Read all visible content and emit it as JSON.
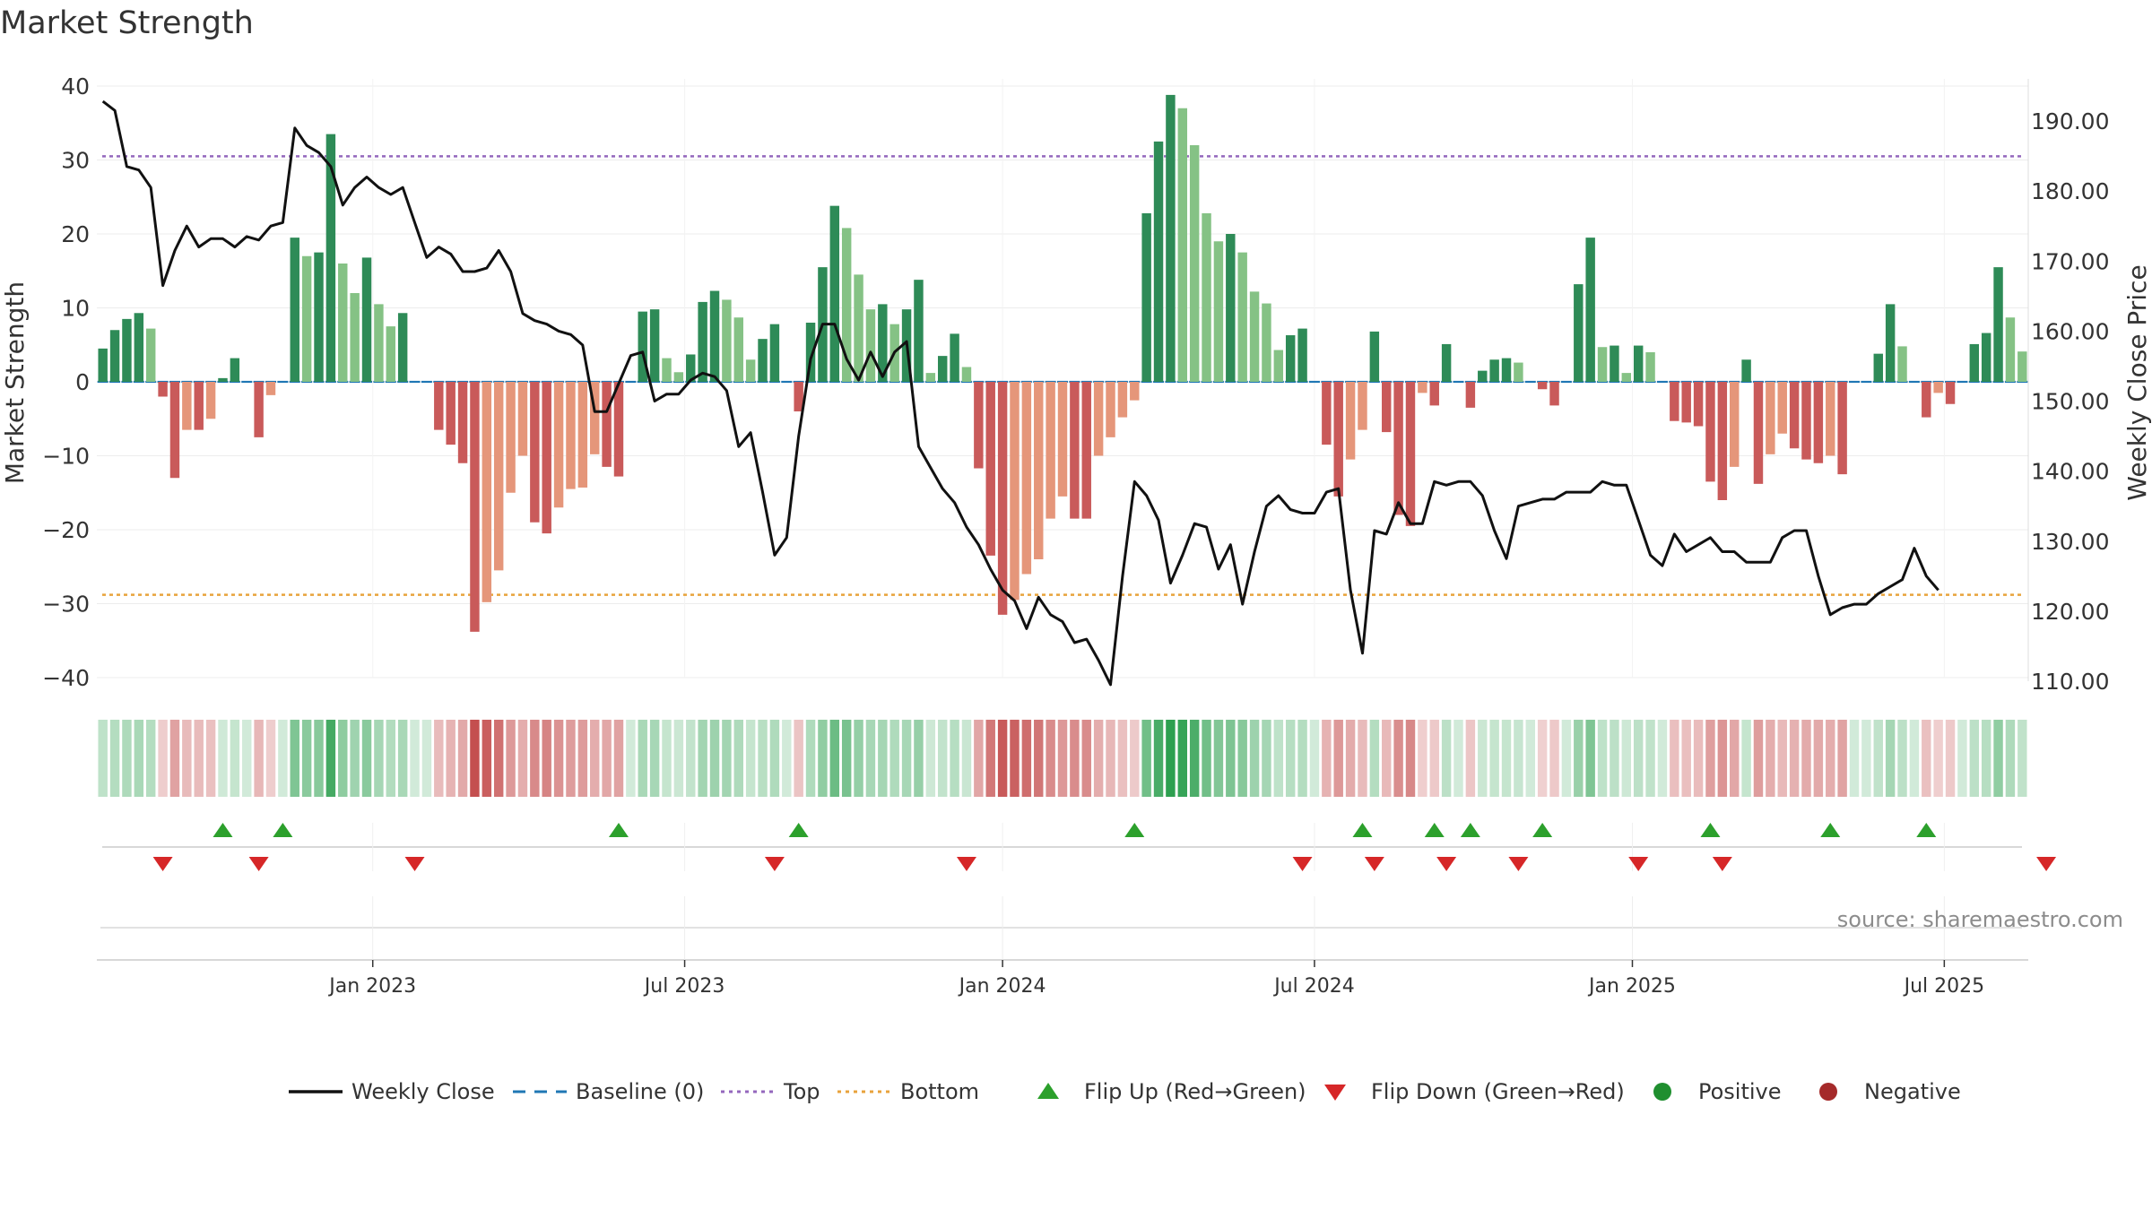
{
  "chart_data": {
    "type": "bar",
    "title": "Market Strength",
    "ylabel_left": "Market Strength",
    "ylabel_right": "Weekly Close Price",
    "source": "source: sharemaestro.com",
    "ylim_left": [
      -40,
      40
    ],
    "ylim_right": [
      110,
      190
    ],
    "yticks_left": [
      40,
      30,
      20,
      10,
      0,
      -10,
      -20,
      -30,
      -40
    ],
    "yticks_left_labels": [
      "40",
      "30",
      "20",
      "10",
      "0",
      "−10",
      "−20",
      "−30",
      "−40"
    ],
    "yticks_right": [
      190,
      180,
      170,
      160,
      150,
      140,
      130,
      120,
      110
    ],
    "yticks_right_labels": [
      "190.00",
      "180.00",
      "170.00",
      "160.00",
      "150.00",
      "140.00",
      "130.00",
      "120.00",
      "110.00"
    ],
    "x_ticks": [
      {
        "week": 23,
        "label": "Jan 2023"
      },
      {
        "week": 49,
        "label": "Jul 2023"
      },
      {
        "week": 75.5,
        "label": "Jan 2024"
      },
      {
        "week": 101.5,
        "label": "Jul 2024"
      },
      {
        "week": 128,
        "label": "Jan 2025"
      },
      {
        "week": 154,
        "label": "Jul 2025"
      }
    ],
    "top_level": 30.5,
    "bottom_level": -28.8,
    "strength": [
      4.5,
      7,
      8.5,
      9.3,
      7.2,
      -2,
      -13,
      -6.5,
      -6.5,
      -5,
      0.5,
      3.2,
      0,
      -7.5,
      -1.8,
      0,
      19.5,
      17,
      17.5,
      33.5,
      16,
      12,
      16.8,
      10.5,
      7.5,
      9.3,
      0,
      0,
      -6.5,
      -8.5,
      -11,
      -33.8,
      -29.8,
      -25.5,
      -15,
      -10,
      -19,
      -20.5,
      -17,
      -14.5,
      -14.3,
      -9.8,
      -11.5,
      -12.8,
      0,
      9.5,
      9.8,
      3.2,
      1.3,
      3.7,
      10.8,
      12.3,
      11.1,
      8.7,
      3,
      5.8,
      7.8,
      0,
      -4,
      8,
      15.5,
      23.8,
      20.8,
      14.5,
      9.8,
      10.5,
      7.8,
      9.8,
      13.8,
      1.2,
      3.5,
      6.5,
      2,
      -11.7,
      -23.5,
      -31.5,
      -29.5,
      -26,
      -24,
      -18.5,
      -15.5,
      -18.5,
      -18.5,
      -10,
      -7.5,
      -4.8,
      -2.5,
      22.8,
      32.5,
      38.8,
      37,
      32,
      22.8,
      19,
      20,
      17.5,
      12.2,
      10.6,
      4.3,
      6.3,
      7.2,
      0,
      -8.5,
      -15.5,
      -10.5,
      -6.5,
      6.8,
      -6.8,
      -18,
      -19.5,
      -1.5,
      -3.2,
      5.1,
      0,
      -3.5,
      1.5,
      3,
      3.2,
      2.6,
      0,
      -1,
      -3.2,
      0,
      13.2,
      19.5,
      4.7,
      4.9,
      1.2,
      4.9,
      4,
      0,
      -5.3,
      -5.5,
      -6,
      -13.5,
      -16,
      -11.5,
      3,
      -13.8,
      -9.8,
      -7,
      -9,
      -10.5,
      -11,
      -10,
      -12.5,
      0,
      0,
      3.8,
      10.5,
      4.8,
      0,
      -4.8,
      -1.5,
      -3,
      0,
      5.1,
      6.6,
      15.5,
      8.7,
      4.1
    ],
    "close": [
      192.8,
      191.5,
      183.5,
      183,
      180.5,
      166.5,
      171.5,
      175,
      172,
      173.2,
      173.2,
      172,
      173.5,
      173,
      175,
      175.5,
      189,
      186.5,
      185.5,
      183.5,
      178,
      180.5,
      182,
      180.5,
      179.5,
      180.5,
      175.5,
      170.5,
      172,
      171,
      168.5,
      168.5,
      169,
      171.5,
      168.5,
      162.5,
      161.5,
      161,
      160,
      159.5,
      158,
      148.5,
      148.5,
      152.5,
      156.5,
      157,
      150,
      151,
      151,
      153,
      154,
      153.5,
      151.5,
      143.5,
      145.5,
      137,
      128,
      130.5,
      145,
      156,
      161,
      161,
      156,
      153,
      157,
      153.5,
      157,
      158.5,
      143.5,
      140.5,
      137.5,
      135.5,
      132,
      129.5,
      126,
      123,
      121.5,
      117.5,
      122,
      119.5,
      118.5,
      115.5,
      116,
      113,
      109.5,
      125,
      138.5,
      136.5,
      133,
      124,
      128,
      132.5,
      132,
      126,
      129.5,
      121,
      128.5,
      135,
      136.5,
      134.5,
      134,
      134,
      137,
      137.5,
      123,
      114,
      131.5,
      131,
      135.5,
      132.5,
      132.5,
      138.5,
      138,
      138.5,
      138.5,
      136.5,
      131.5,
      127.5,
      135,
      135.5,
      136,
      136,
      137,
      137,
      137,
      138.5,
      138,
      138,
      133,
      128,
      126.5,
      131,
      128.5,
      129.5,
      130.5,
      128.5,
      128.5,
      127,
      127,
      127,
      130.5,
      131.5,
      131.5,
      125,
      119.5,
      120.5,
      121,
      121,
      122.5,
      123.5,
      124.5,
      129,
      125,
      123
    ],
    "flip_up_weeks": [
      10,
      15,
      43,
      58,
      86,
      105,
      111,
      114,
      120,
      134,
      144,
      152
    ],
    "flip_down_weeks": [
      5,
      13,
      26,
      56,
      72,
      100,
      106,
      112,
      118,
      128,
      135,
      162
    ],
    "series": [
      {
        "name": "Weekly Close",
        "color": "#111111"
      },
      {
        "name": "Baseline (0)",
        "color": "#1f77b4"
      },
      {
        "name": "Top",
        "color": "#9467bd"
      },
      {
        "name": "Bottom",
        "color": "#e8a33c"
      }
    ],
    "legend": [
      {
        "label": "Weekly Close",
        "kind": "line-solid",
        "color": "#111111"
      },
      {
        "label": "Baseline (0)",
        "kind": "line-dash",
        "color": "#1f77b4"
      },
      {
        "label": "Top",
        "kind": "line-dot",
        "color": "#9467bd"
      },
      {
        "label": "Bottom",
        "kind": "line-dot",
        "color": "#e8a33c"
      },
      {
        "label": "Flip Up (Red→Green)",
        "kind": "tri-up",
        "color": "#2ca02c"
      },
      {
        "label": "Flip Down (Green→Red)",
        "kind": "tri-down",
        "color": "#d62728"
      },
      {
        "label": "Positive",
        "kind": "dot",
        "color": "#1f8f2f"
      },
      {
        "label": "Negative",
        "kind": "dot",
        "color": "#a52a2a"
      }
    ],
    "colors": {
      "strong_pos": "#2e8b57",
      "weak_pos": "#85c285",
      "strong_neg": "#c95a5a",
      "weak_neg": "#e5967a",
      "baseline": "#1f77b4",
      "top": "#9467bd",
      "bottom": "#e8a33c",
      "close": "#111111"
    }
  }
}
